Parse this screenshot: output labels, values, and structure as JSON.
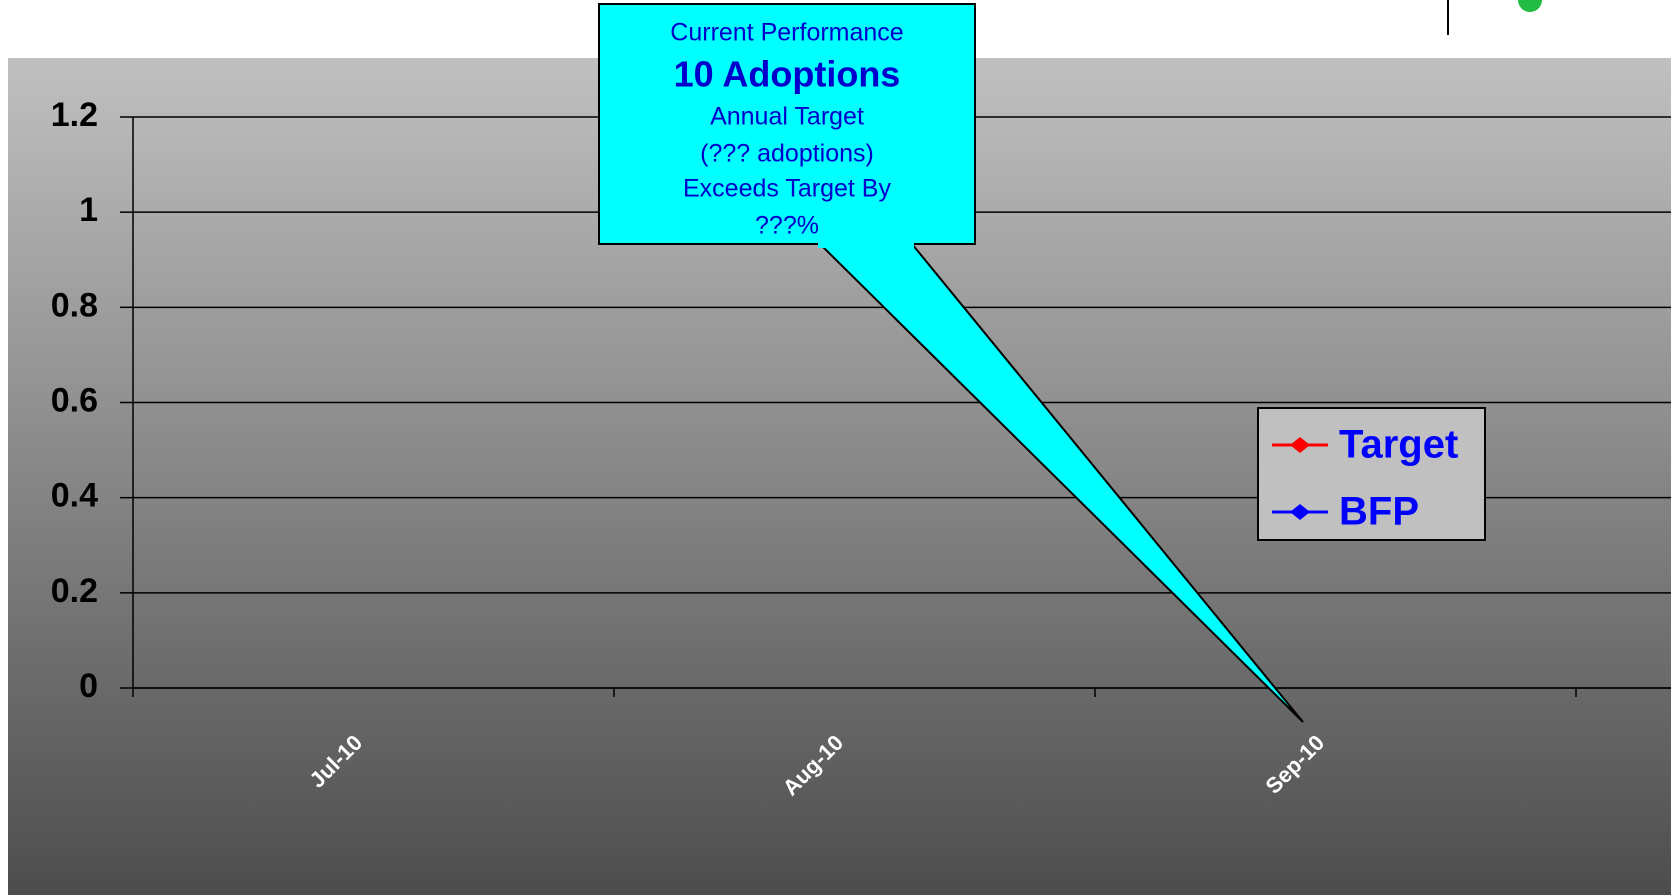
{
  "chart_data": {
    "type": "line",
    "categories": [
      "Jul-10",
      "Aug-10",
      "Sep-10"
    ],
    "series": [
      {
        "name": "Target",
        "color": "#ff0000",
        "values": [
          null,
          null,
          null
        ]
      },
      {
        "name": "BFP",
        "color": "#0000ff",
        "values": [
          null,
          null,
          null
        ]
      }
    ],
    "ylim": [
      0,
      1.2
    ],
    "yticks": [
      0,
      0.2,
      0.4,
      0.6,
      0.8,
      1,
      1.2
    ],
    "grid": true,
    "legend": "right",
    "annotation": [
      "Current Performance",
      "10 Adoptions",
      "Annual Target",
      "(??? adoptions)",
      "Exceeds Target By",
      "???%"
    ]
  }
}
